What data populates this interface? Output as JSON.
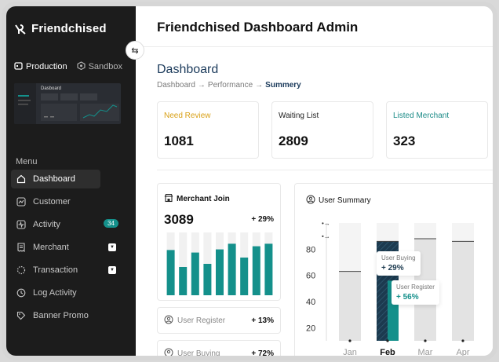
{
  "brand": {
    "name": "Friendchised"
  },
  "environment": [
    {
      "label": "Production",
      "icon": "store-icon",
      "active": true
    },
    {
      "label": "Sandbox",
      "icon": "hexagon-icon",
      "active": false
    }
  ],
  "thumbnail": {
    "title": "Dasboard"
  },
  "menu": {
    "label": "Menu",
    "items": [
      {
        "label": "Dashboard",
        "icon": "home-icon",
        "active": true
      },
      {
        "label": "Customer",
        "icon": "chart-line-icon"
      },
      {
        "label": "Activity",
        "icon": "pulse-icon",
        "badge": "34"
      },
      {
        "label": "Merchant",
        "icon": "receipt-icon",
        "expandable": true
      },
      {
        "label": "Transaction",
        "icon": "dotted-circle-icon",
        "expandable": true
      },
      {
        "label": "Log Activity",
        "icon": "clock-icon"
      },
      {
        "label": "Banner Promo",
        "icon": "tag-icon"
      }
    ]
  },
  "header": {
    "title": "Friendchised Dashboard Admin"
  },
  "page": {
    "title": "Dashboard",
    "breadcrumb": [
      "Dashboard",
      "Performance",
      "Summery"
    ]
  },
  "stats": [
    {
      "label": "Need Review",
      "value": "1081",
      "color": "#d9a016"
    },
    {
      "label": "Waiting List",
      "value": "2809",
      "color": "#222222"
    },
    {
      "label": "Listed Merchant",
      "value": "323",
      "color": "#1a8a86"
    }
  ],
  "merchant_join": {
    "title": "Merchant Join",
    "value": "3089",
    "change": "+ 29%",
    "bars": [
      0.72,
      0.45,
      0.68,
      0.5,
      0.73,
      0.82,
      0.6,
      0.78,
      0.82
    ],
    "bar_color": "#14908b"
  },
  "user_register": {
    "label": "User Register",
    "change": "+ 13%"
  },
  "user_buying": {
    "label": "User Buying",
    "change": "+ 72%"
  },
  "user_summary": {
    "title": "User Summary",
    "chart_data": {
      "type": "bar",
      "categories": [
        "Jan",
        "Feb",
        "Mar",
        "Apr"
      ],
      "y_ticks": [
        20,
        40,
        60,
        80
      ],
      "series": [
        {
          "name": "User Buying",
          "values": [
            63,
            86,
            88,
            86
          ]
        },
        {
          "name": "User Register",
          "values": [
            0,
            56,
            0,
            0
          ]
        }
      ],
      "tooltips": [
        {
          "label": "User Buying",
          "value": "+ 29%"
        },
        {
          "label": "User Register",
          "value": "+ 56%"
        }
      ]
    }
  }
}
